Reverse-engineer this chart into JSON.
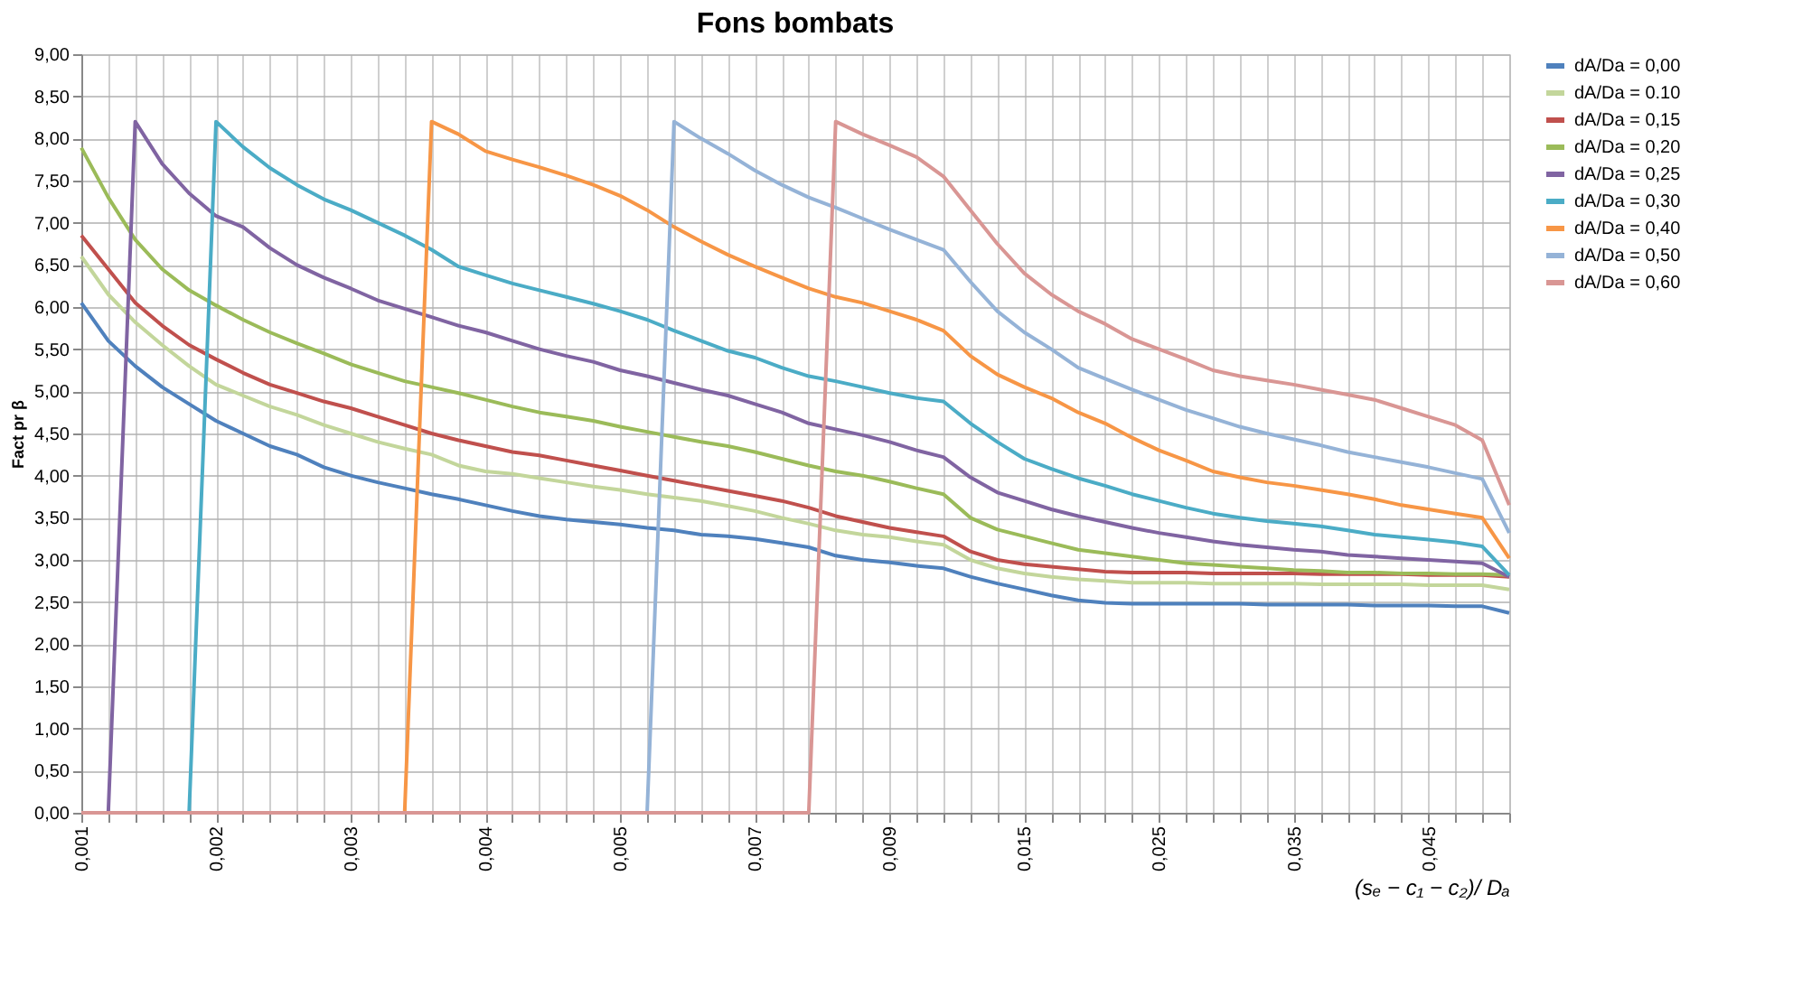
{
  "chart_data": {
    "type": "line",
    "title": "Fons bombats",
    "xlabel": "(sₑ − c₁ − c₂)/ Dₐ",
    "ylabel": "Fact pr β",
    "categories": [
      "0,001",
      null,
      null,
      null,
      null,
      "0,002",
      null,
      null,
      null,
      null,
      "0,003",
      null,
      null,
      null,
      null,
      "0,004",
      null,
      null,
      null,
      null,
      "0,005",
      null,
      null,
      null,
      null,
      "0,007",
      null,
      null,
      null,
      null,
      "0,009",
      null,
      null,
      null,
      null,
      "0,015",
      null,
      null,
      null,
      null,
      "0,025",
      null,
      null,
      null,
      null,
      "0,035",
      null,
      null,
      null,
      null,
      "0,045",
      null,
      null,
      null
    ],
    "ylim": [
      0,
      9
    ],
    "yticks": [
      {
        "value": 0,
        "label": "0,00"
      },
      {
        "value": 0.5,
        "label": "0,50"
      },
      {
        "value": 1,
        "label": "1,00"
      },
      {
        "value": 1.5,
        "label": "1,50"
      },
      {
        "value": 2,
        "label": "2,00"
      },
      {
        "value": 2.5,
        "label": "2,50"
      },
      {
        "value": 3,
        "label": "3,00"
      },
      {
        "value": 3.5,
        "label": "3,50"
      },
      {
        "value": 4,
        "label": "4,00"
      },
      {
        "value": 4.5,
        "label": "4,50"
      },
      {
        "value": 5,
        "label": "5,00"
      },
      {
        "value": 5.5,
        "label": "5,50"
      },
      {
        "value": 6,
        "label": "6,00"
      },
      {
        "value": 6.5,
        "label": "6,50"
      },
      {
        "value": 7,
        "label": "7,00"
      },
      {
        "value": 7.5,
        "label": "7,50"
      },
      {
        "value": 8,
        "label": "8,00"
      },
      {
        "value": 8.5,
        "label": "8,50"
      },
      {
        "value": 9,
        "label": "9,00"
      }
    ],
    "grid": true,
    "legend": "right",
    "marker": "none",
    "line_style": "solid",
    "series": [
      {
        "name": "dA/Da = 0,00",
        "color": "#4f81bd",
        "values": [
          6.05,
          5.6,
          5.3,
          5.05,
          4.85,
          4.65,
          4.5,
          4.35,
          4.25,
          4.1,
          4.0,
          3.92,
          3.85,
          3.78,
          3.72,
          3.65,
          3.58,
          3.52,
          3.48,
          3.45,
          3.42,
          3.38,
          3.35,
          3.3,
          3.28,
          3.25,
          3.2,
          3.15,
          3.05,
          3.0,
          2.97,
          2.93,
          2.9,
          2.8,
          2.72,
          2.65,
          2.58,
          2.52,
          2.49,
          2.48,
          2.48,
          2.48,
          2.48,
          2.48,
          2.47,
          2.47,
          2.47,
          2.47,
          2.46,
          2.46,
          2.46,
          2.45,
          2.45,
          2.37
        ]
      },
      {
        "name": "dA/Da = 0.10",
        "color": "#c3d69b",
        "values": [
          6.6,
          6.15,
          5.82,
          5.55,
          5.3,
          5.08,
          4.95,
          4.82,
          4.72,
          4.6,
          4.5,
          4.4,
          4.32,
          4.25,
          4.12,
          4.05,
          4.02,
          3.97,
          3.92,
          3.87,
          3.83,
          3.78,
          3.74,
          3.7,
          3.64,
          3.58,
          3.5,
          3.43,
          3.35,
          3.3,
          3.27,
          3.22,
          3.18,
          3.0,
          2.9,
          2.84,
          2.8,
          2.77,
          2.75,
          2.73,
          2.73,
          2.73,
          2.72,
          2.72,
          2.72,
          2.72,
          2.71,
          2.71,
          2.71,
          2.71,
          2.7,
          2.7,
          2.7,
          2.65
        ]
      },
      {
        "name": "dA/Da = 0,15",
        "color": "#c0504d",
        "values": [
          6.85,
          6.45,
          6.05,
          5.78,
          5.55,
          5.38,
          5.22,
          5.08,
          4.98,
          4.88,
          4.8,
          4.7,
          4.6,
          4.5,
          4.42,
          4.35,
          4.28,
          4.24,
          4.18,
          4.12,
          4.06,
          4.0,
          3.94,
          3.88,
          3.82,
          3.76,
          3.7,
          3.62,
          3.52,
          3.45,
          3.38,
          3.33,
          3.28,
          3.1,
          3.0,
          2.95,
          2.92,
          2.89,
          2.86,
          2.85,
          2.85,
          2.85,
          2.84,
          2.84,
          2.84,
          2.84,
          2.83,
          2.83,
          2.83,
          2.83,
          2.82,
          2.82,
          2.82,
          2.8
        ]
      },
      {
        "name": "dA/Da = 0,20",
        "color": "#9bbb59",
        "values": [
          7.89,
          7.3,
          6.8,
          6.45,
          6.2,
          6.02,
          5.85,
          5.7,
          5.57,
          5.45,
          5.32,
          5.22,
          5.12,
          5.05,
          4.98,
          4.9,
          4.82,
          4.75,
          4.7,
          4.65,
          4.58,
          4.52,
          4.46,
          4.4,
          4.35,
          4.28,
          4.2,
          4.12,
          4.05,
          4.0,
          3.93,
          3.85,
          3.78,
          3.5,
          3.36,
          3.28,
          3.2,
          3.12,
          3.08,
          3.04,
          3.0,
          2.96,
          2.94,
          2.92,
          2.9,
          2.88,
          2.87,
          2.85,
          2.85,
          2.84,
          2.84,
          2.83,
          2.83,
          2.82
        ]
      },
      {
        "name": "dA/Da = 0,25",
        "color": "#8064a2",
        "values": [
          null,
          0,
          8.2,
          7.7,
          7.35,
          7.08,
          6.95,
          6.7,
          6.5,
          6.35,
          6.22,
          6.08,
          5.98,
          5.88,
          5.78,
          5.7,
          5.6,
          5.5,
          5.42,
          5.35,
          5.25,
          5.18,
          5.1,
          5.02,
          4.95,
          4.85,
          4.75,
          4.62,
          4.55,
          4.48,
          4.4,
          4.3,
          4.22,
          3.98,
          3.8,
          3.7,
          3.6,
          3.52,
          3.45,
          3.38,
          3.32,
          3.27,
          3.22,
          3.18,
          3.15,
          3.12,
          3.1,
          3.06,
          3.04,
          3.02,
          3.0,
          2.98,
          2.96,
          2.8
        ]
      },
      {
        "name": "dA/Da = 0,30",
        "color": "#4bacc6",
        "values": [
          null,
          null,
          null,
          null,
          0,
          8.2,
          7.9,
          7.65,
          7.45,
          7.28,
          7.15,
          7.0,
          6.85,
          6.68,
          6.48,
          6.38,
          6.28,
          6.2,
          6.12,
          6.04,
          5.95,
          5.85,
          5.72,
          5.6,
          5.48,
          5.4,
          5.28,
          5.18,
          5.12,
          5.05,
          4.98,
          4.92,
          4.88,
          4.62,
          4.4,
          4.2,
          4.08,
          3.97,
          3.88,
          3.78,
          3.7,
          3.62,
          3.55,
          3.5,
          3.46,
          3.43,
          3.4,
          3.35,
          3.3,
          3.27,
          3.24,
          3.21,
          3.16,
          2.82
        ]
      },
      {
        "name": "dA/Da = 0,40",
        "color": "#f79646",
        "values": [
          null,
          null,
          null,
          null,
          null,
          null,
          null,
          null,
          null,
          null,
          null,
          null,
          0,
          8.2,
          8.05,
          7.85,
          7.75,
          7.66,
          7.56,
          7.45,
          7.32,
          7.15,
          6.95,
          6.78,
          6.62,
          6.48,
          6.35,
          6.22,
          6.12,
          6.05,
          5.95,
          5.85,
          5.72,
          5.42,
          5.2,
          5.05,
          4.92,
          4.75,
          4.62,
          4.45,
          4.3,
          4.18,
          4.05,
          3.98,
          3.92,
          3.88,
          3.83,
          3.78,
          3.72,
          3.65,
          3.6,
          3.55,
          3.5,
          3.02
        ]
      },
      {
        "name": "dA/Da = 0,50",
        "color": "#95b3d7",
        "values": [
          null,
          null,
          null,
          null,
          null,
          null,
          null,
          null,
          null,
          null,
          null,
          null,
          null,
          null,
          null,
          null,
          null,
          null,
          null,
          null,
          null,
          0,
          8.2,
          8.0,
          7.82,
          7.62,
          7.45,
          7.3,
          7.18,
          7.05,
          6.92,
          6.8,
          6.68,
          6.3,
          5.95,
          5.7,
          5.5,
          5.28,
          5.15,
          5.02,
          4.9,
          4.78,
          4.68,
          4.58,
          4.5,
          4.43,
          4.36,
          4.28,
          4.22,
          4.16,
          4.1,
          4.03,
          3.96,
          3.32
        ]
      },
      {
        "name": "dA/Da = 0,60",
        "color": "#d99694",
        "values": [
          0,
          0,
          0,
          0,
          0,
          0,
          0,
          0,
          0,
          0,
          0,
          0,
          0,
          0,
          0,
          0,
          0,
          0,
          0,
          0,
          0,
          0,
          0,
          0,
          0,
          0,
          0,
          0,
          8.2,
          8.05,
          7.92,
          7.78,
          7.55,
          7.15,
          6.75,
          6.4,
          6.15,
          5.95,
          5.8,
          5.62,
          5.5,
          5.38,
          5.25,
          5.18,
          5.13,
          5.08,
          5.02,
          4.96,
          4.9,
          4.8,
          4.7,
          4.6,
          4.42,
          3.65
        ]
      }
    ]
  }
}
